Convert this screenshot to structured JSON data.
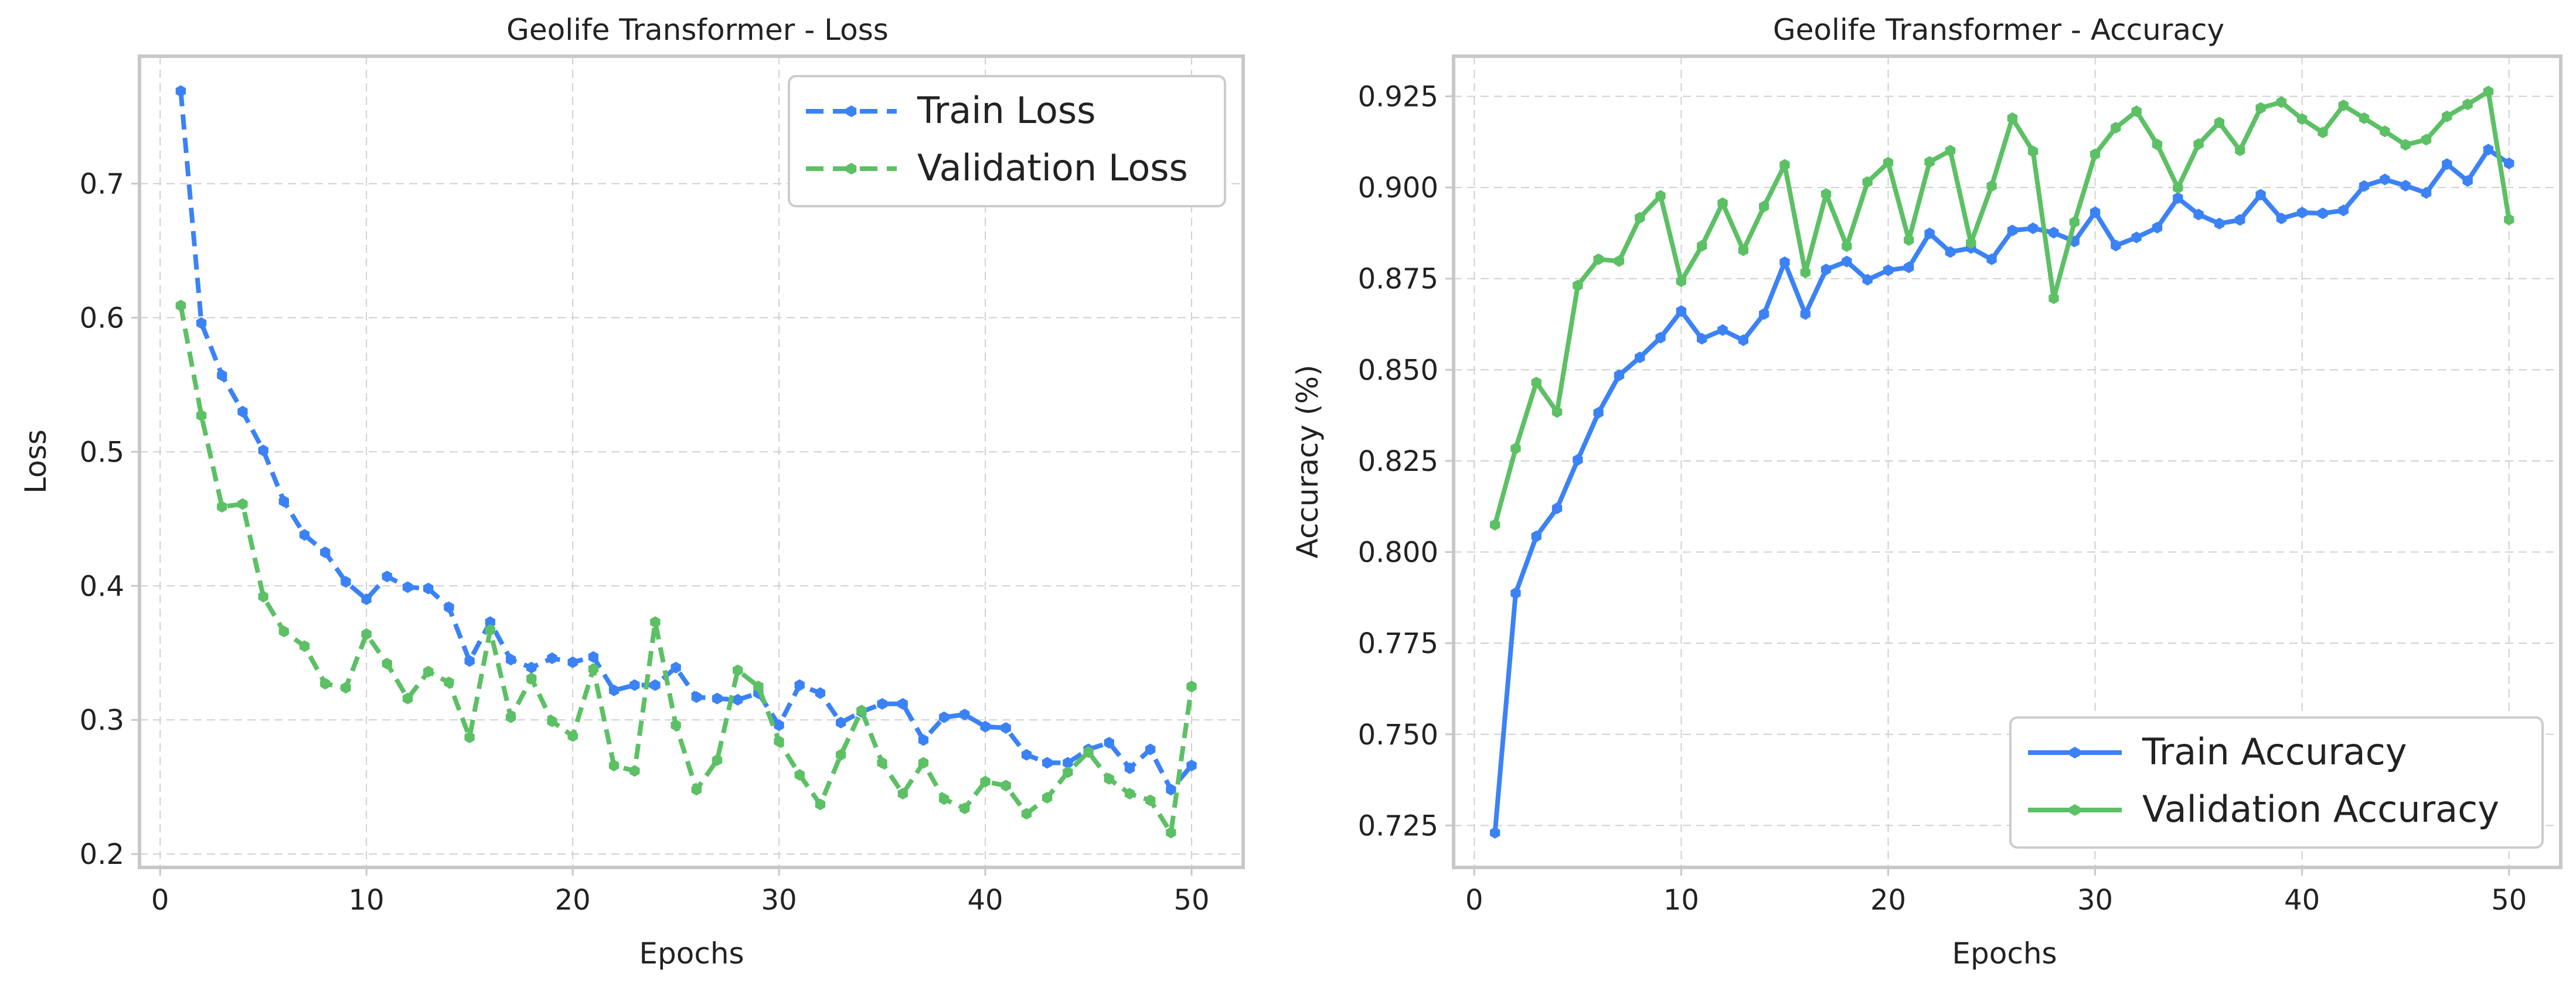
{
  "colors": {
    "train": "#3b82f6",
    "validation": "#5cc065"
  },
  "chart_data": [
    {
      "type": "line",
      "title": "Geolife Transformer - Loss",
      "xlabel": "Epochs",
      "ylabel": "Loss",
      "xlim": [
        -1,
        52.5
      ],
      "ylim": [
        0.19,
        0.795
      ],
      "xticks": [
        0,
        10,
        20,
        30,
        40,
        50
      ],
      "xtick_labels": [
        "0",
        "10",
        "20",
        "30",
        "40",
        "50"
      ],
      "yticks": [
        0.2,
        0.3,
        0.4,
        0.5,
        0.6,
        0.7
      ],
      "ytick_labels": [
        "0.2",
        "0.3",
        "0.4",
        "0.5",
        "0.6",
        "0.7"
      ],
      "grid": true,
      "legend_position": "top-right",
      "line_style": "dashed",
      "x": [
        1,
        2,
        3,
        4,
        5,
        6,
        7,
        8,
        9,
        10,
        11,
        12,
        13,
        14,
        15,
        16,
        17,
        18,
        19,
        20,
        21,
        22,
        23,
        24,
        25,
        26,
        27,
        28,
        29,
        30,
        31,
        32,
        33,
        34,
        35,
        36,
        37,
        38,
        39,
        40,
        41,
        42,
        43,
        44,
        45,
        46,
        47,
        48,
        49,
        50
      ],
      "series": [
        {
          "name": "Train Loss",
          "color_key": "train",
          "values": [
            0.769,
            0.596,
            0.557,
            0.53,
            0.501,
            0.463,
            0.438,
            0.425,
            0.403,
            0.39,
            0.407,
            0.399,
            0.398,
            0.384,
            0.344,
            0.373,
            0.345,
            0.339,
            0.346,
            0.343,
            0.347,
            0.322,
            0.326,
            0.326,
            0.339,
            0.317,
            0.316,
            0.315,
            0.32,
            0.296,
            0.326,
            0.32,
            0.298,
            0.306,
            0.312,
            0.312,
            0.285,
            0.302,
            0.304,
            0.295,
            0.294,
            0.274,
            0.268,
            0.268,
            0.278,
            0.283,
            0.264,
            0.278,
            0.248,
            0.266
          ]
        },
        {
          "name": "Validation Loss",
          "color_key": "validation",
          "values": [
            0.609,
            0.527,
            0.459,
            0.461,
            0.392,
            0.366,
            0.355,
            0.327,
            0.324,
            0.364,
            0.342,
            0.316,
            0.336,
            0.328,
            0.287,
            0.367,
            0.302,
            0.331,
            0.299,
            0.288,
            0.338,
            0.266,
            0.262,
            0.373,
            0.296,
            0.248,
            0.27,
            0.337,
            0.325,
            0.284,
            0.259,
            0.237,
            0.274,
            0.307,
            0.268,
            0.245,
            0.268,
            0.241,
            0.234,
            0.254,
            0.251,
            0.23,
            0.242,
            0.261,
            0.276,
            0.256,
            0.245,
            0.24,
            0.216,
            0.325
          ]
        }
      ]
    },
    {
      "type": "line",
      "title": "Geolife Transformer - Accuracy",
      "xlabel": "Epochs",
      "ylabel": "Accuracy (%)",
      "xlim": [
        -1,
        52.5
      ],
      "ylim": [
        0.7135,
        0.936
      ],
      "xticks": [
        0,
        10,
        20,
        30,
        40,
        50
      ],
      "xtick_labels": [
        "0",
        "10",
        "20",
        "30",
        "40",
        "50"
      ],
      "yticks": [
        0.725,
        0.75,
        0.775,
        0.8,
        0.825,
        0.85,
        0.875,
        0.9,
        0.925
      ],
      "ytick_labels": [
        "0.725",
        "0.750",
        "0.775",
        "0.800",
        "0.825",
        "0.850",
        "0.875",
        "0.900",
        "0.925"
      ],
      "grid": true,
      "legend_position": "bottom-right",
      "line_style": "solid",
      "x": [
        1,
        2,
        3,
        4,
        5,
        6,
        7,
        8,
        9,
        10,
        11,
        12,
        13,
        14,
        15,
        16,
        17,
        18,
        19,
        20,
        21,
        22,
        23,
        24,
        25,
        26,
        27,
        28,
        29,
        30,
        31,
        32,
        33,
        34,
        35,
        36,
        37,
        38,
        39,
        40,
        41,
        42,
        43,
        44,
        45,
        46,
        47,
        48,
        49,
        50
      ],
      "series": [
        {
          "name": "Train Accuracy",
          "color_key": "train",
          "values": [
            0.723,
            0.7887,
            0.8043,
            0.812,
            0.8253,
            0.8382,
            0.8485,
            0.8534,
            0.8588,
            0.8661,
            0.8585,
            0.8609,
            0.8581,
            0.8653,
            0.8795,
            0.8653,
            0.8775,
            0.8797,
            0.8747,
            0.8773,
            0.8781,
            0.8874,
            0.8823,
            0.8834,
            0.8803,
            0.8882,
            0.8888,
            0.8876,
            0.8852,
            0.8932,
            0.8841,
            0.8863,
            0.889,
            0.8971,
            0.8926,
            0.8901,
            0.8911,
            0.898,
            0.8915,
            0.8931,
            0.8929,
            0.8937,
            0.9004,
            0.9022,
            0.9005,
            0.8985,
            0.9064,
            0.9018,
            0.9104,
            0.9066
          ]
        },
        {
          "name": "Validation Accuracy",
          "color_key": "validation",
          "values": [
            0.8075,
            0.8284,
            0.8465,
            0.8384,
            0.8731,
            0.8803,
            0.8798,
            0.8917,
            0.8977,
            0.8743,
            0.884,
            0.8957,
            0.8828,
            0.8948,
            0.9062,
            0.8767,
            0.8982,
            0.8839,
            0.9015,
            0.9068,
            0.8856,
            0.907,
            0.9101,
            0.8848,
            0.9004,
            0.919,
            0.9099,
            0.8696,
            0.8905,
            0.9091,
            0.9164,
            0.9209,
            0.9118,
            0.8999,
            0.9119,
            0.9178,
            0.9102,
            0.9218,
            0.9234,
            0.9188,
            0.9151,
            0.9225,
            0.919,
            0.9154,
            0.9117,
            0.9131,
            0.9195,
            0.9228,
            0.9263,
            0.8912
          ]
        }
      ]
    }
  ]
}
